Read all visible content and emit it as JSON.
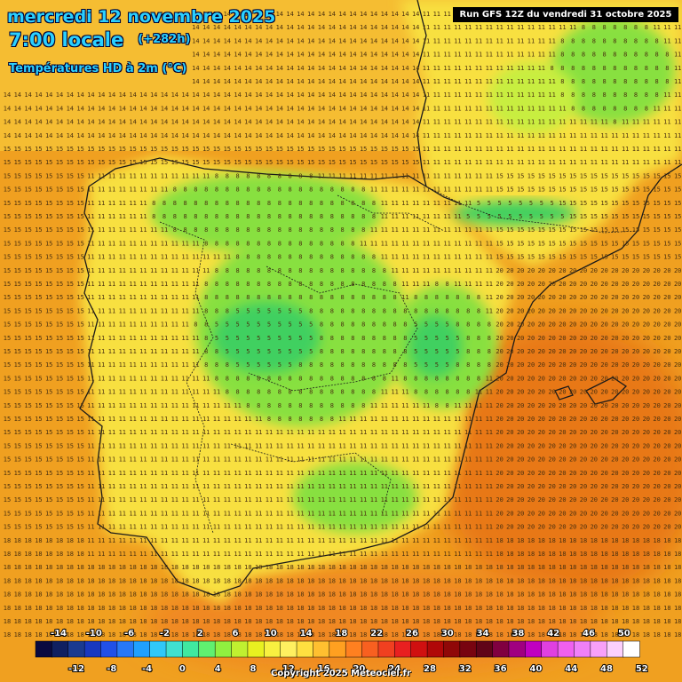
{
  "header": {
    "date_line": "mercredi 12 novembre 2025",
    "time_line": "7:00 locale",
    "offset": "(+282h)",
    "field_title": "Températures HD à 2m (°C)",
    "run_label": "Run GFS 12Z du vendredi 31 octobre 2025"
  },
  "footer": {
    "copyright": "Copyright 2025 Meteociel.fr"
  },
  "colors": {
    "sea_warm": "#f0a020",
    "sea_hot": "#e87818",
    "land_mild": "#f8e040",
    "land_cool": "#88e040",
    "land_cold": "#40d060",
    "border": "#1a1a1a"
  },
  "scale": {
    "top_labels": [
      "-14",
      "-10",
      "-6",
      "-2",
      "2",
      "6",
      "10",
      "14",
      "18",
      "22",
      "26",
      "30",
      "34",
      "38",
      "42",
      "46",
      "50"
    ],
    "bottom_labels": [
      "-12",
      "-8",
      "-4",
      "0",
      "4",
      "8",
      "12",
      "16",
      "20",
      "24",
      "28",
      "32",
      "36",
      "40",
      "44",
      "48",
      "52"
    ],
    "colors": [
      "#0a0a40",
      "#102060",
      "#1a3a90",
      "#1838c0",
      "#2050e8",
      "#2878f8",
      "#20a0ff",
      "#30c8f8",
      "#40e0d0",
      "#40e8a0",
      "#60f070",
      "#90f040",
      "#c0f030",
      "#e8f020",
      "#f8f040",
      "#fff060",
      "#ffe040",
      "#ffc030",
      "#ffa020",
      "#ff8020",
      "#f86020",
      "#f04020",
      "#e82020",
      "#d01010",
      "#b00808",
      "#900808",
      "#780410",
      "#600418",
      "#800040",
      "#a00080",
      "#c000c0",
      "#e040e0",
      "#f060f0",
      "#f080f8",
      "#f8a0f8",
      "#fcd0fc",
      "#ffffff"
    ]
  }
}
